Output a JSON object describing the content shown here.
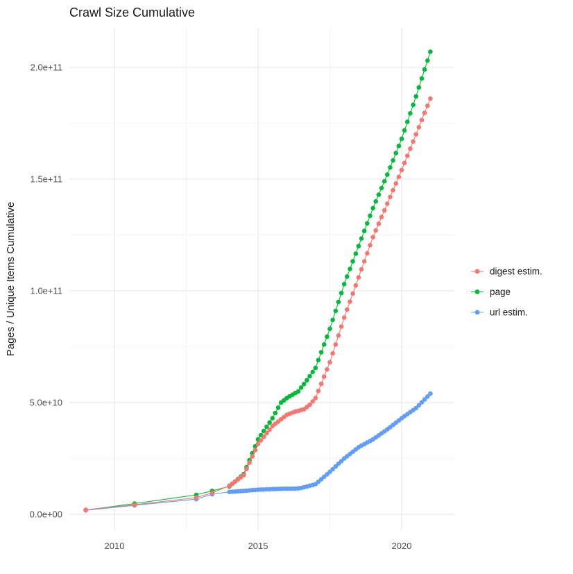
{
  "figure": {
    "background": "#ffffff"
  },
  "chart_data": {
    "type": "scatter",
    "title": "Crawl Size Cumulative",
    "xlabel": "",
    "ylabel": "Pages / Unique Items Cumulative",
    "grid": true,
    "legend_position": "right",
    "y_value_scale": "billions (1e9)",
    "x_axis": {
      "range": [
        2008.4,
        2021.9
      ],
      "ticks": [
        {
          "value": 2010,
          "label": "2010"
        },
        {
          "value": 2015,
          "label": "2015"
        },
        {
          "value": 2020,
          "label": "2020"
        }
      ]
    },
    "y_axis": {
      "range_billions": [
        -8,
        218
      ],
      "ticks": [
        {
          "value_billions": 0,
          "label": "0.0e+00"
        },
        {
          "value_billions": 50,
          "label": "5.0e+10"
        },
        {
          "value_billions": 100,
          "label": "1.0e+11"
        },
        {
          "value_billions": 150,
          "label": "1.5e+11"
        },
        {
          "value_billions": 200,
          "label": "2.0e+11"
        }
      ]
    },
    "series": [
      {
        "name": "digest estim.",
        "color": "#F8766D",
        "points_year_billions": [
          [
            2009,
            2
          ],
          [
            2010.7,
            4.3
          ],
          [
            2012.85,
            7.5
          ],
          [
            2013.4,
            9.6
          ],
          [
            2014,
            12.8
          ],
          [
            2014.1,
            13.7
          ],
          [
            2014.2,
            14.7
          ],
          [
            2014.3,
            15.6
          ],
          [
            2014.4,
            16.6
          ],
          [
            2014.5,
            17.5
          ],
          [
            2014.6,
            20.3
          ],
          [
            2014.7,
            23.1
          ],
          [
            2014.8,
            25.9
          ],
          [
            2014.9,
            28.7
          ],
          [
            2015,
            31.5
          ],
          [
            2015.1,
            33.1
          ],
          [
            2015.2,
            34.7
          ],
          [
            2015.3,
            36.3
          ],
          [
            2015.4,
            37.9
          ],
          [
            2015.5,
            39.5
          ],
          [
            2015.6,
            40.5
          ],
          [
            2015.7,
            41.5
          ],
          [
            2015.8,
            42.5
          ],
          [
            2015.9,
            43.5
          ],
          [
            2016,
            44.5
          ],
          [
            2016.1,
            45
          ],
          [
            2016.2,
            45.5
          ],
          [
            2016.3,
            46
          ],
          [
            2016.4,
            46.3
          ],
          [
            2016.5,
            46.7
          ],
          [
            2016.6,
            47
          ],
          [
            2016.7,
            48
          ],
          [
            2016.8,
            49
          ],
          [
            2016.9,
            50.5
          ],
          [
            2017,
            52
          ],
          [
            2017.1,
            55.2
          ],
          [
            2017.2,
            58.4
          ],
          [
            2017.3,
            61.6
          ],
          [
            2017.4,
            64.8
          ],
          [
            2017.5,
            68
          ],
          [
            2017.6,
            72
          ],
          [
            2017.7,
            76
          ],
          [
            2017.8,
            80
          ],
          [
            2017.9,
            84
          ],
          [
            2018,
            88
          ],
          [
            2018.1,
            91.6
          ],
          [
            2018.2,
            95.2
          ],
          [
            2018.3,
            98.8
          ],
          [
            2018.4,
            102.4
          ],
          [
            2018.5,
            106
          ],
          [
            2018.6,
            109.6
          ],
          [
            2018.7,
            113.2
          ],
          [
            2018.8,
            116.8
          ],
          [
            2018.9,
            120.4
          ],
          [
            2019,
            124
          ],
          [
            2019.1,
            127
          ],
          [
            2019.2,
            130
          ],
          [
            2019.3,
            133
          ],
          [
            2019.4,
            136
          ],
          [
            2019.5,
            139
          ],
          [
            2019.6,
            142
          ],
          [
            2019.7,
            145
          ],
          [
            2019.8,
            148
          ],
          [
            2019.9,
            151
          ],
          [
            2020,
            154
          ],
          [
            2020.1,
            157.2
          ],
          [
            2020.2,
            160.4
          ],
          [
            2020.3,
            163.6
          ],
          [
            2020.4,
            166.8
          ],
          [
            2020.5,
            170
          ],
          [
            2020.6,
            173.2
          ],
          [
            2020.7,
            176.4
          ],
          [
            2020.8,
            179.6
          ],
          [
            2020.9,
            182.8
          ],
          [
            2021,
            186
          ]
        ]
      },
      {
        "name": "page",
        "color": "#00BA38",
        "points_year_billions": [
          [
            2009,
            1.9
          ],
          [
            2010.7,
            4.8
          ],
          [
            2012.85,
            8.7
          ],
          [
            2013.4,
            10.5
          ],
          [
            2014,
            12.5
          ],
          [
            2014.1,
            13.6
          ],
          [
            2014.2,
            14.7
          ],
          [
            2014.3,
            15.8
          ],
          [
            2014.4,
            16.9
          ],
          [
            2014.5,
            18
          ],
          [
            2014.6,
            21.1
          ],
          [
            2014.7,
            24.2
          ],
          [
            2014.8,
            27.3
          ],
          [
            2014.9,
            30.4
          ],
          [
            2015,
            33.5
          ],
          [
            2015.1,
            35.4
          ],
          [
            2015.2,
            37.3
          ],
          [
            2015.3,
            39.2
          ],
          [
            2015.4,
            41.1
          ],
          [
            2015.5,
            43
          ],
          [
            2015.6,
            45.3
          ],
          [
            2015.7,
            47.7
          ],
          [
            2015.8,
            50
          ],
          [
            2015.9,
            51
          ],
          [
            2016,
            52
          ],
          [
            2016.1,
            52.8
          ],
          [
            2016.2,
            53.5
          ],
          [
            2016.3,
            54.3
          ],
          [
            2016.4,
            55
          ],
          [
            2016.5,
            56.7
          ],
          [
            2016.6,
            58.3
          ],
          [
            2016.7,
            60
          ],
          [
            2016.8,
            61.8
          ],
          [
            2016.9,
            63.7
          ],
          [
            2017,
            65.5
          ],
          [
            2017.1,
            69
          ],
          [
            2017.2,
            72.5
          ],
          [
            2017.3,
            76
          ],
          [
            2017.4,
            79.5
          ],
          [
            2017.5,
            83
          ],
          [
            2017.6,
            87
          ],
          [
            2017.7,
            91
          ],
          [
            2017.8,
            95
          ],
          [
            2017.9,
            99
          ],
          [
            2018,
            103
          ],
          [
            2018.1,
            106.4
          ],
          [
            2018.2,
            109.8
          ],
          [
            2018.3,
            113.2
          ],
          [
            2018.4,
            116.6
          ],
          [
            2018.5,
            120
          ],
          [
            2018.6,
            123.4
          ],
          [
            2018.7,
            126.8
          ],
          [
            2018.8,
            130.2
          ],
          [
            2018.9,
            133.6
          ],
          [
            2019,
            137
          ],
          [
            2019.1,
            140
          ],
          [
            2019.2,
            143
          ],
          [
            2019.3,
            146
          ],
          [
            2019.4,
            149
          ],
          [
            2019.5,
            152
          ],
          [
            2019.6,
            155.2
          ],
          [
            2019.7,
            158.4
          ],
          [
            2019.8,
            161.6
          ],
          [
            2019.9,
            164.8
          ],
          [
            2020,
            168
          ],
          [
            2020.1,
            171.8
          ],
          [
            2020.2,
            175.6
          ],
          [
            2020.3,
            179.4
          ],
          [
            2020.4,
            183.2
          ],
          [
            2020.5,
            187
          ],
          [
            2020.6,
            191
          ],
          [
            2020.7,
            195
          ],
          [
            2020.8,
            199
          ],
          [
            2020.9,
            203
          ],
          [
            2021,
            207
          ]
        ]
      },
      {
        "name": "url estim.",
        "color": "#619CFF",
        "points_year_billions": [
          [
            2009,
            1.8
          ],
          [
            2010.7,
            4
          ],
          [
            2012.85,
            6.8
          ],
          [
            2013.4,
            9
          ],
          [
            2014,
            10
          ],
          [
            2014.1,
            10.1
          ],
          [
            2014.2,
            10.2
          ],
          [
            2014.3,
            10.3
          ],
          [
            2014.4,
            10.4
          ],
          [
            2014.5,
            10.5
          ],
          [
            2014.6,
            10.6
          ],
          [
            2014.7,
            10.7
          ],
          [
            2014.8,
            10.8
          ],
          [
            2014.9,
            10.9
          ],
          [
            2015,
            11
          ],
          [
            2015.1,
            11.1
          ],
          [
            2015.2,
            11.1
          ],
          [
            2015.3,
            11.2
          ],
          [
            2015.4,
            11.2
          ],
          [
            2015.5,
            11.3
          ],
          [
            2015.6,
            11.3
          ],
          [
            2015.7,
            11.4
          ],
          [
            2015.8,
            11.4
          ],
          [
            2015.9,
            11.5
          ],
          [
            2016,
            11.5
          ],
          [
            2016.1,
            11.5
          ],
          [
            2016.2,
            11.5
          ],
          [
            2016.3,
            11.5
          ],
          [
            2016.4,
            11.6
          ],
          [
            2016.5,
            11.8
          ],
          [
            2016.6,
            12.1
          ],
          [
            2016.7,
            12.4
          ],
          [
            2016.8,
            12.8
          ],
          [
            2016.9,
            13.1
          ],
          [
            2017,
            13.5
          ],
          [
            2017.1,
            14.6
          ],
          [
            2017.2,
            15.7
          ],
          [
            2017.3,
            16.8
          ],
          [
            2017.4,
            17.9
          ],
          [
            2017.5,
            19
          ],
          [
            2017.6,
            20.2
          ],
          [
            2017.7,
            21.4
          ],
          [
            2017.8,
            22.6
          ],
          [
            2017.9,
            23.8
          ],
          [
            2018,
            25
          ],
          [
            2018.1,
            26
          ],
          [
            2018.2,
            27
          ],
          [
            2018.3,
            28
          ],
          [
            2018.4,
            29
          ],
          [
            2018.5,
            30
          ],
          [
            2018.6,
            30.7
          ],
          [
            2018.7,
            31.4
          ],
          [
            2018.8,
            32.1
          ],
          [
            2018.9,
            32.8
          ],
          [
            2019,
            33.5
          ],
          [
            2019.1,
            34.4
          ],
          [
            2019.2,
            35.3
          ],
          [
            2019.3,
            36.2
          ],
          [
            2019.4,
            37.1
          ],
          [
            2019.5,
            38
          ],
          [
            2019.6,
            39
          ],
          [
            2019.7,
            40
          ],
          [
            2019.8,
            41
          ],
          [
            2019.9,
            42
          ],
          [
            2020,
            43
          ],
          [
            2020.1,
            43.9
          ],
          [
            2020.2,
            44.8
          ],
          [
            2020.3,
            45.7
          ],
          [
            2020.4,
            46.6
          ],
          [
            2020.5,
            47.5
          ],
          [
            2020.6,
            48.8
          ],
          [
            2020.7,
            50.1
          ],
          [
            2020.8,
            51.4
          ],
          [
            2020.9,
            52.7
          ],
          [
            2021,
            54
          ]
        ]
      }
    ]
  }
}
